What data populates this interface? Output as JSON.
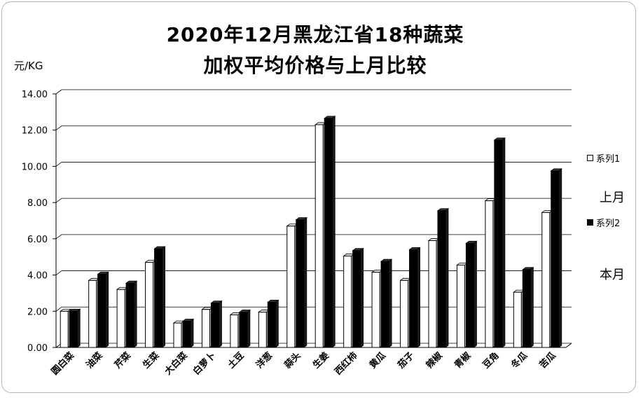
{
  "chart_data": {
    "type": "bar",
    "title_line1": "2020年12月黑龙江省18种蔬菜",
    "title_line2": "加权平均价格与上月比较",
    "ylabel": "元/KG",
    "ylim": [
      0,
      14
    ],
    "yticks": [
      "0.00",
      "2.00",
      "4.00",
      "6.00",
      "8.00",
      "10.00",
      "12.00",
      "14.00"
    ],
    "grid": true,
    "legend_position": "right",
    "categories": [
      "圆白菜",
      "油菜",
      "芹菜",
      "生菜",
      "大白菜",
      "白萝卜",
      "土豆",
      "洋葱",
      "蒜头",
      "生姜",
      "西红柿",
      "黄瓜",
      "茄子",
      "辣椒",
      "青椒",
      "豆角",
      "冬瓜",
      "苦瓜"
    ],
    "series": [
      {
        "name": "系列1",
        "color": "#ffffff",
        "values": [
          2.0,
          3.7,
          3.2,
          4.7,
          1.35,
          2.1,
          1.8,
          1.95,
          6.7,
          12.3,
          5.05,
          4.15,
          3.7,
          5.9,
          4.55,
          8.1,
          3.05,
          7.45
        ]
      },
      {
        "name": "系列2",
        "color": "#000000",
        "values": [
          2.0,
          4.05,
          3.55,
          5.45,
          1.45,
          2.45,
          1.95,
          2.5,
          7.05,
          12.65,
          5.35,
          4.75,
          5.4,
          7.55,
          5.75,
          11.45,
          4.3,
          9.75
        ]
      }
    ]
  },
  "legend_notes": [
    "上月",
    "本月"
  ]
}
